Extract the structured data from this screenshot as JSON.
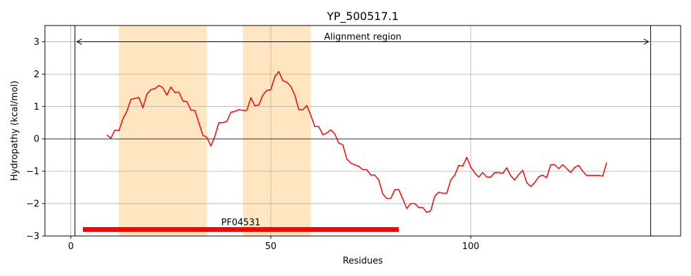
{
  "chart_data": {
    "type": "line",
    "title": "YP_500517.1",
    "xlabel": "Residues",
    "ylabel": "Hydropathy (kcal/mol)",
    "xlim": [
      -6.5,
      152.5
    ],
    "ylim": [
      -3,
      3.5
    ],
    "xticks": [
      0,
      50,
      100
    ],
    "yticks": [
      -3,
      -2,
      -1,
      0,
      1,
      2,
      3
    ],
    "grid": true,
    "zero_line": 0,
    "highlight_regions": [
      [
        12,
        34
      ],
      [
        43,
        60
      ]
    ],
    "highlight_color": "#ffe6c0",
    "line_color": "#ff0000",
    "alignment": {
      "label": "Alignment region",
      "start": 1,
      "end": 145,
      "y": 3.0
    },
    "domain_bar": {
      "label": "PF04531",
      "start": 3,
      "end": 82,
      "y": -2.8,
      "color": "#ff0000"
    },
    "series": [
      {
        "x": [
          9,
          10,
          11,
          12,
          13,
          14,
          15,
          16,
          17,
          18,
          19,
          20,
          21,
          22,
          23,
          24,
          25,
          26,
          27,
          28,
          29,
          30,
          31,
          32,
          33,
          34,
          35,
          36,
          37,
          38,
          39,
          40,
          41,
          42,
          43,
          44,
          45,
          46,
          47,
          48,
          49,
          50,
          51,
          52,
          53,
          54,
          55,
          56,
          57,
          58,
          59,
          60,
          61,
          62,
          63,
          64,
          65,
          66,
          67,
          68,
          69,
          70,
          71,
          72,
          73,
          74,
          75,
          76,
          77,
          78,
          79,
          80,
          81,
          82,
          83,
          84,
          85,
          86,
          87,
          88,
          89,
          90,
          91,
          92,
          93,
          94,
          95,
          96,
          97,
          98,
          99,
          100,
          101,
          102,
          103,
          104,
          105,
          106,
          107,
          108,
          109,
          110,
          111,
          112,
          113,
          114,
          115,
          116,
          117,
          118,
          119,
          120,
          121,
          122,
          123,
          124,
          125,
          126,
          127,
          128,
          129,
          130,
          131,
          132,
          133,
          134
        ],
        "values": [
          0.12,
          0.02,
          0.27,
          0.25,
          0.62,
          0.85,
          1.22,
          1.25,
          1.28,
          0.96,
          1.38,
          1.52,
          1.55,
          1.65,
          1.58,
          1.35,
          1.6,
          1.43,
          1.45,
          1.17,
          1.15,
          0.89,
          0.88,
          0.5,
          0.11,
          0.05,
          -0.22,
          0.08,
          0.5,
          0.5,
          0.54,
          0.82,
          0.85,
          0.9,
          0.88,
          0.88,
          1.27,
          1.02,
          1.05,
          1.35,
          1.5,
          1.52,
          1.92,
          2.08,
          1.8,
          1.75,
          1.62,
          1.35,
          0.9,
          0.9,
          1.03,
          0.73,
          0.38,
          0.38,
          0.13,
          0.18,
          0.28,
          0.15,
          -0.13,
          -0.18,
          -0.62,
          -0.75,
          -0.8,
          -0.85,
          -0.95,
          -0.95,
          -1.12,
          -1.12,
          -1.27,
          -1.7,
          -1.84,
          -1.84,
          -1.57,
          -1.57,
          -1.85,
          -2.15,
          -2.0,
          -2.0,
          -2.12,
          -2.12,
          -2.27,
          -2.22,
          -1.77,
          -1.65,
          -1.68,
          -1.68,
          -1.27,
          -1.12,
          -0.82,
          -0.84,
          -0.57,
          -0.87,
          -1.05,
          -1.18,
          -1.04,
          -1.18,
          -1.18,
          -1.04,
          -1.04,
          -1.07,
          -0.89,
          -1.14,
          -1.27,
          -1.1,
          -0.97,
          -1.35,
          -1.47,
          -1.35,
          -1.17,
          -1.12,
          -1.2,
          -0.8,
          -0.8,
          -0.92,
          -0.8,
          -0.92,
          -1.04,
          -0.88,
          -0.82,
          -1.0,
          -1.13,
          -1.13,
          -1.13,
          -1.13,
          -1.15,
          -0.73
        ]
      }
    ]
  }
}
